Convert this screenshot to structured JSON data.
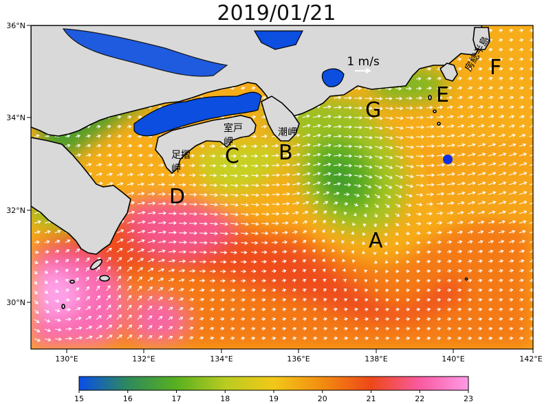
{
  "title": "2019/01/21",
  "map": {
    "lat_labels": [
      "36°N",
      "34°N",
      "32°N",
      "30°N"
    ],
    "lon_labels": [
      "130°E",
      "132°E",
      "134°E",
      "136°E",
      "138°E",
      "140°E",
      "142°E"
    ],
    "scale_label": "1 m/s",
    "place_labels": {
      "ashizuri": "足摺岬",
      "muroto": "室戸岬",
      "shionomisaki": "潮岬",
      "boso": "房総半島"
    },
    "point_labels": [
      "A",
      "B",
      "C",
      "D",
      "E",
      "F",
      "G"
    ],
    "marker_color": "#1030e0"
  },
  "colorbar": {
    "ticks": [
      "15",
      "16",
      "17",
      "18",
      "19",
      "20",
      "21",
      "22",
      "23"
    ],
    "colors": [
      "#0a4ee8",
      "#2e8a5c",
      "#58b020",
      "#b8cc20",
      "#f2c818",
      "#f28c10",
      "#ee4818",
      "#fa5aa0",
      "#ff9ae6"
    ]
  }
}
